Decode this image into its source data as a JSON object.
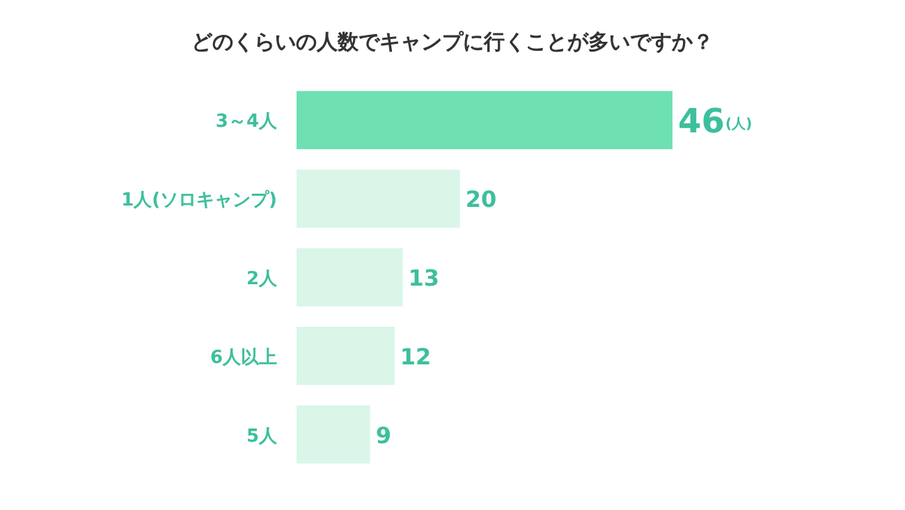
{
  "chart_data": {
    "type": "bar",
    "orientation": "horizontal",
    "title": "どのくらいの人数でキャンプに行くことが多いですか？",
    "categories": [
      "3～4人",
      "1人(ソロキャンプ)",
      "2人",
      "6人以上",
      "5人"
    ],
    "values": [
      46,
      20,
      13,
      12,
      9
    ],
    "colors": [
      "#6ee0b2",
      "#d9f6e9",
      "#d9f6e9",
      "#d9f6e9",
      "#d9f6e9"
    ],
    "data_labels": true,
    "annotations": [
      "(人)"
    ]
  }
}
